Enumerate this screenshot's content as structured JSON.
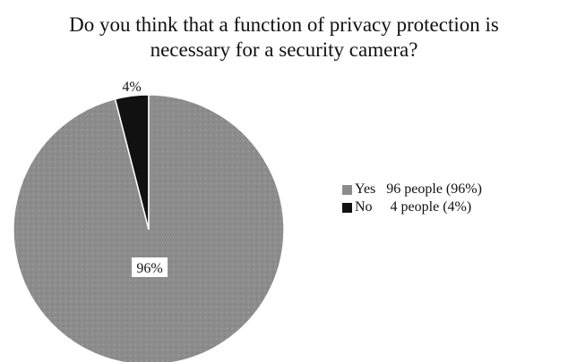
{
  "chart_data": {
    "type": "pie",
    "title_lines": [
      "Do you think that a function of privacy protection  is",
      "necessary for a security camera?"
    ],
    "slices": [
      {
        "label": "Yes",
        "value": 96,
        "data_label": "96%",
        "legend_text": "Yes   96 people (96%)",
        "color": "#8c8c8c"
      },
      {
        "label": "No",
        "value": 4,
        "data_label": "4%",
        "legend_text": "No     4 people (4%)",
        "color": "#111111"
      }
    ],
    "legend_placement": "right"
  }
}
